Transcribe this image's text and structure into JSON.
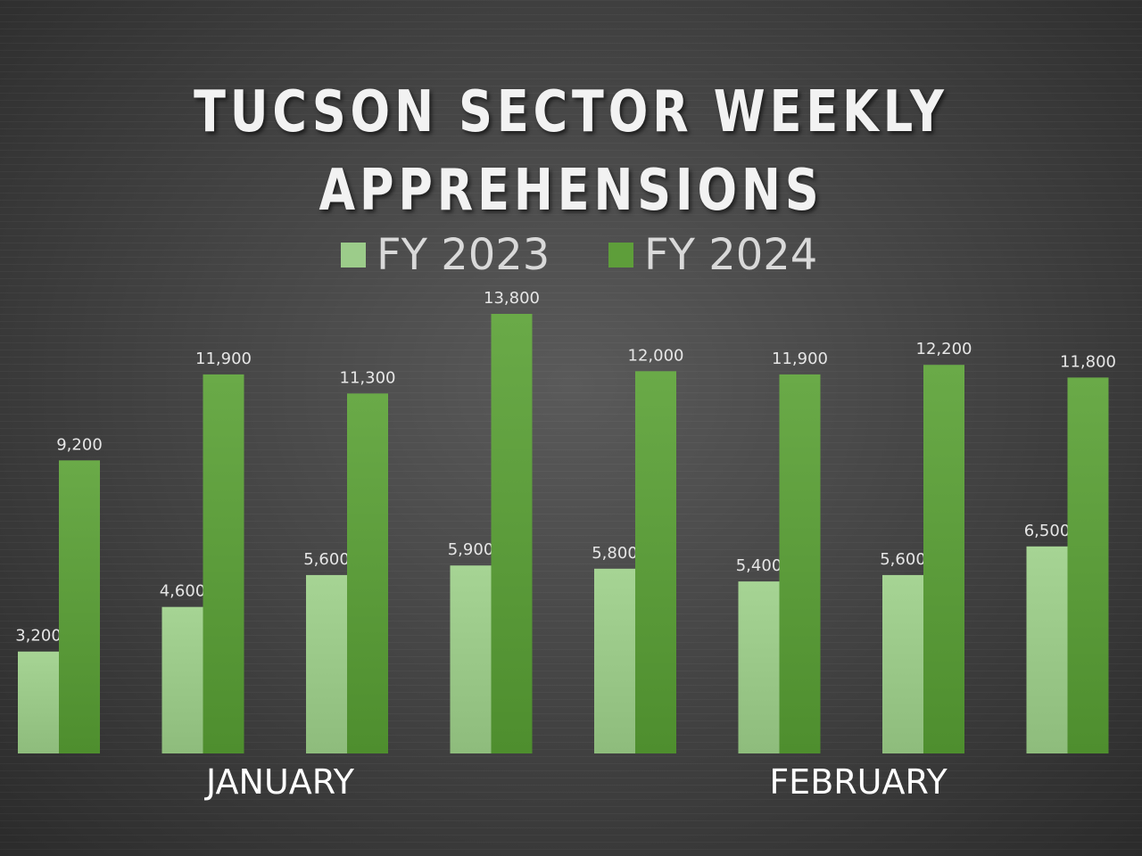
{
  "chart_data": {
    "type": "bar",
    "title_line1": "TUCSON SECTOR WEEKLY",
    "title_line2": "APPREHENSIONS",
    "categories": [
      "",
      "",
      "",
      "",
      "",
      "",
      "",
      ""
    ],
    "month_labels": [
      "JANUARY",
      "FEBRUARY"
    ],
    "series": [
      {
        "name": "FY 2023",
        "color": "#9ccc8a",
        "values": [
          3200,
          4600,
          5600,
          5900,
          5800,
          5400,
          5600,
          6500
        ],
        "labels": [
          "3,200",
          "4,600",
          "5,600",
          "5,900",
          "5,800",
          "5,400",
          "5,600",
          "6,500"
        ]
      },
      {
        "name": "FY 2024",
        "color": "#5e9e3a",
        "values": [
          9200,
          11900,
          11300,
          13800,
          12000,
          11900,
          12200,
          11800
        ],
        "labels": [
          "9,200",
          "11,900",
          "11,300",
          "13,800",
          "12,000",
          "11,900",
          "12,200",
          "11,800"
        ]
      }
    ],
    "ylim": [
      0,
      14000
    ],
    "grid": false,
    "legend_position": "top"
  }
}
